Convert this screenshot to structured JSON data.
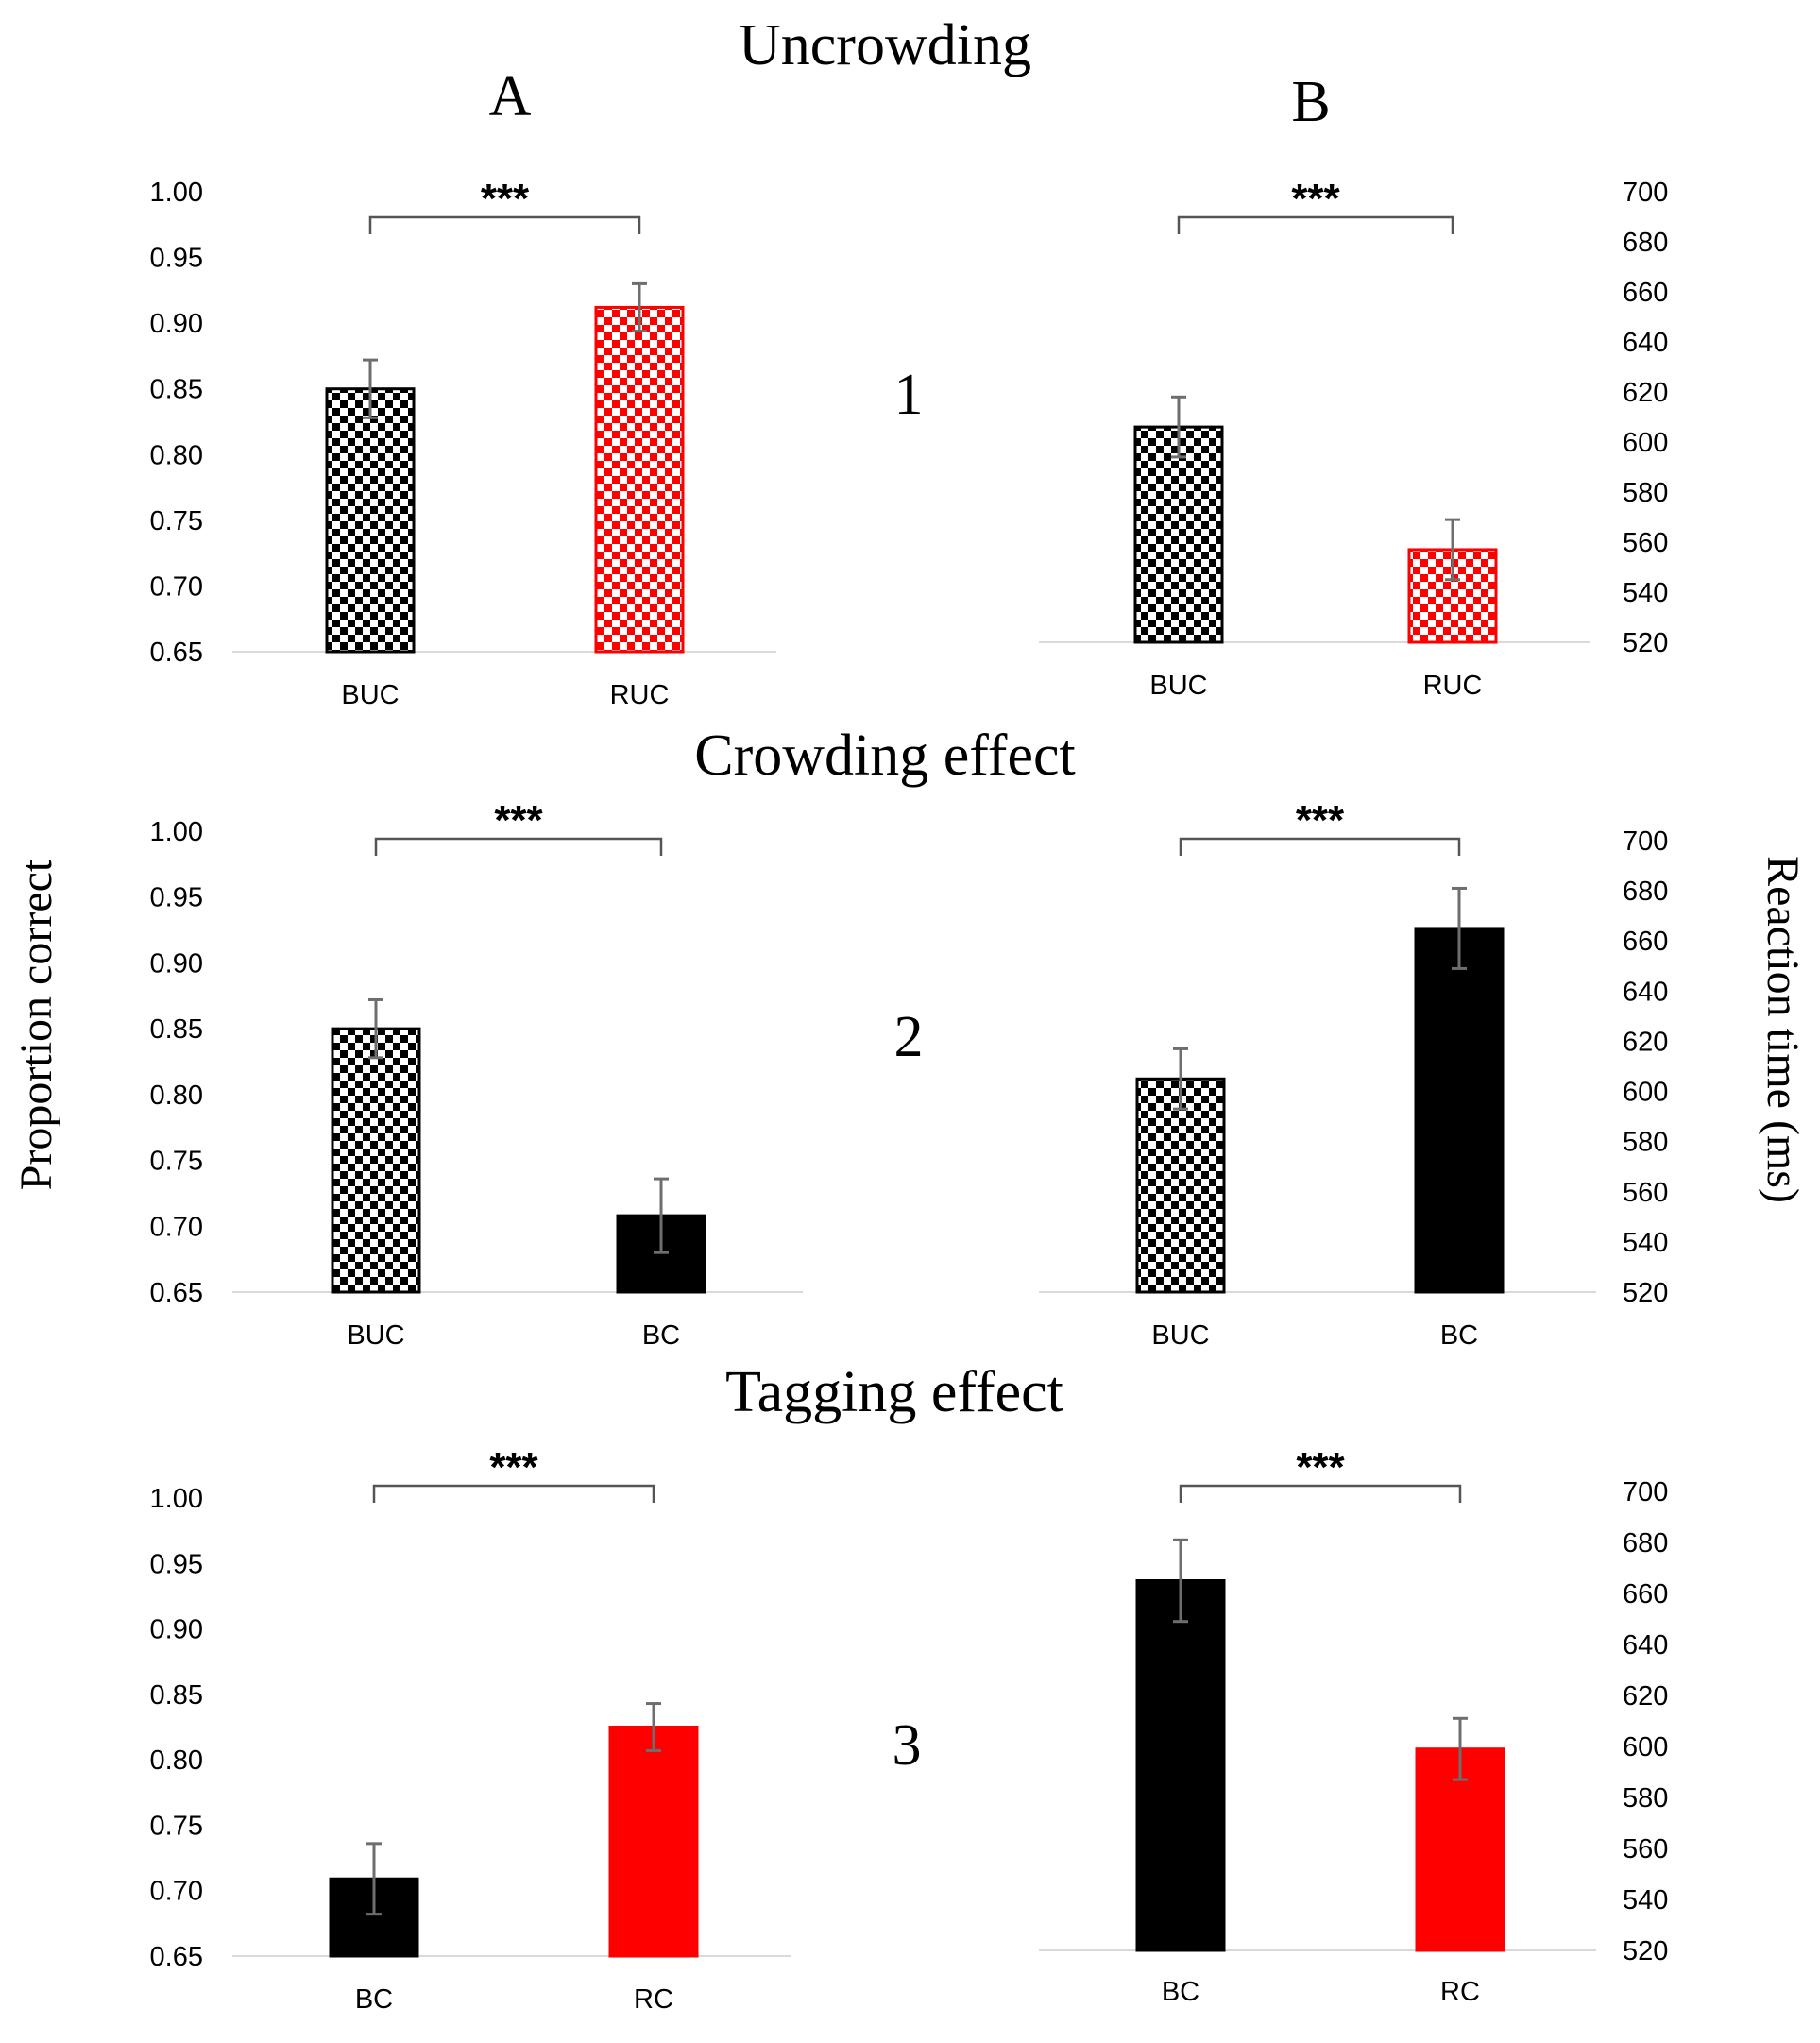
{
  "figure": {
    "section_titles": [
      "Uncrowding",
      "Crowding effect",
      "Tagging effect"
    ],
    "column_labels": [
      "A",
      "B"
    ],
    "row_labels": [
      "1",
      "2",
      "3"
    ],
    "left_axis_title": "Proportion correct",
    "right_axis_title": "Reaction time (ms)",
    "colors": {
      "black": "#000000",
      "red": "#ff0000",
      "error_bar": "#6e6e6e",
      "baseline": "#d9d9d9",
      "bracket": "#555555"
    }
  },
  "chart_data": [
    {
      "id": "A1",
      "type": "bar",
      "row": "1",
      "column": "A",
      "ylabel": "Proportion correct",
      "ylim": [
        0.65,
        1.0
      ],
      "yticks": [
        "1.00",
        "0.95",
        "0.90",
        "0.85",
        "0.80",
        "0.75",
        "0.70",
        "0.65"
      ],
      "categories": [
        "BUC",
        "RUC"
      ],
      "values": [
        0.85,
        0.912
      ],
      "errors": [
        0.022,
        0.018
      ],
      "fills": [
        "checker-black",
        "checker-red"
      ],
      "significance": "***"
    },
    {
      "id": "B1",
      "type": "bar",
      "row": "1",
      "column": "B",
      "ylabel": "Reaction time (ms)",
      "ylim": [
        520,
        700
      ],
      "yticks": [
        "700",
        "680",
        "660",
        "640",
        "620",
        "600",
        "580",
        "560",
        "540",
        "520"
      ],
      "categories": [
        "BUC",
        "RUC"
      ],
      "values": [
        606,
        557
      ],
      "errors": [
        12,
        12
      ],
      "fills": [
        "checker-black",
        "checker-red"
      ],
      "significance": "***"
    },
    {
      "id": "A2",
      "type": "bar",
      "row": "2",
      "column": "A",
      "ylabel": "Proportion correct",
      "ylim": [
        0.65,
        1.0
      ],
      "yticks": [
        "1.00",
        "0.95",
        "0.90",
        "0.85",
        "0.80",
        "0.75",
        "0.70",
        "0.65"
      ],
      "categories": [
        "BUC",
        "BC"
      ],
      "values": [
        0.85,
        0.708
      ],
      "errors": [
        0.022,
        0.028
      ],
      "fills": [
        "checker-black",
        "black"
      ],
      "significance": "***"
    },
    {
      "id": "B2",
      "type": "bar",
      "row": "2",
      "column": "B",
      "ylabel": "Reaction time (ms)",
      "ylim": [
        520,
        700
      ],
      "yticks": [
        "700",
        "680",
        "660",
        "640",
        "620",
        "600",
        "580",
        "560",
        "540",
        "520"
      ],
      "categories": [
        "BUC",
        "BC"
      ],
      "values": [
        605,
        665
      ],
      "errors": [
        12,
        16
      ],
      "fills": [
        "checker-black",
        "black"
      ],
      "significance": "***"
    },
    {
      "id": "A3",
      "type": "bar",
      "row": "3",
      "column": "A",
      "ylabel": "Proportion correct",
      "ylim": [
        0.65,
        1.0
      ],
      "yticks": [
        "1.00",
        "0.95",
        "0.90",
        "0.85",
        "0.80",
        "0.75",
        "0.70",
        "0.65"
      ],
      "categories": [
        "BC",
        "RC"
      ],
      "values": [
        0.709,
        0.825
      ],
      "errors": [
        0.027,
        0.018
      ],
      "fills": [
        "black",
        "red"
      ],
      "significance": "***"
    },
    {
      "id": "B3",
      "type": "bar",
      "row": "3",
      "column": "B",
      "ylabel": "Reaction time (ms)",
      "ylim": [
        520,
        700
      ],
      "yticks": [
        "700",
        "680",
        "660",
        "640",
        "620",
        "600",
        "580",
        "560",
        "540",
        "520"
      ],
      "categories": [
        "BC",
        "RC"
      ],
      "values": [
        665,
        599
      ],
      "errors": [
        16,
        12
      ],
      "fills": [
        "black",
        "red"
      ],
      "significance": "***"
    }
  ]
}
